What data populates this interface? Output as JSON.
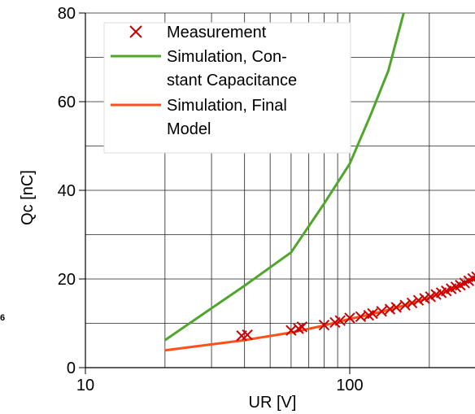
{
  "chart_data": {
    "type": "line",
    "xlabel": "UR [V]",
    "ylabel": "Qc [nC]",
    "xscale": "log",
    "xlim": [
      10,
      310
    ],
    "ylim": [
      0,
      80
    ],
    "grid": true,
    "legend_position": "top-left",
    "x_tick_labels": [
      "10",
      "100"
    ],
    "y_tick_labels": [
      "0",
      "20",
      "40",
      "60",
      "80"
    ],
    "side_note": "6",
    "series": [
      {
        "name": "Measurement",
        "kind": "scatter",
        "marker": "x",
        "color": "#cc0000",
        "legend_lines": [
          "Measurement"
        ],
        "x": [
          39,
          41,
          60,
          64,
          66,
          80,
          88,
          92,
          100,
          110,
          118,
          122,
          132,
          142,
          150,
          162,
          172,
          182,
          192,
          202,
          212,
          222,
          232,
          242,
          252,
          262,
          272,
          282,
          292,
          302
        ],
        "y": [
          7.2,
          7.4,
          8.4,
          8.8,
          9.2,
          9.6,
          10.2,
          10.6,
          11.2,
          11.5,
          11.8,
          12.2,
          12.7,
          13.2,
          13.6,
          14.1,
          14.6,
          15.2,
          15.6,
          16.0,
          16.5,
          16.9,
          17.3,
          17.8,
          18.2,
          18.6,
          19.1,
          19.6,
          20.1,
          20.5
        ]
      },
      {
        "name": "Simulation, Constant Capacitance",
        "kind": "line",
        "color": "#4ea72a",
        "legend_lines": [
          "Simulation, Con-",
          "stant Capacitance"
        ],
        "x": [
          20,
          40,
          60,
          80,
          100,
          120,
          140,
          160
        ],
        "y": [
          6.2,
          18.5,
          26,
          37,
          46,
          57,
          67,
          80
        ]
      },
      {
        "name": "Simulation, Final Model",
        "kind": "line",
        "color": "#ff4f1a",
        "legend_lines": [
          "Simulation, Final",
          "Model"
        ],
        "x": [
          20,
          40,
          60,
          80,
          100,
          120,
          140,
          160,
          180,
          200,
          220,
          240,
          260,
          280,
          300,
          310
        ],
        "y": [
          3.9,
          6.2,
          7.9,
          9.5,
          11.0,
          12.0,
          13.0,
          14.0,
          14.9,
          15.8,
          16.7,
          17.6,
          18.5,
          19.4,
          20.2,
          20.7
        ]
      }
    ]
  }
}
